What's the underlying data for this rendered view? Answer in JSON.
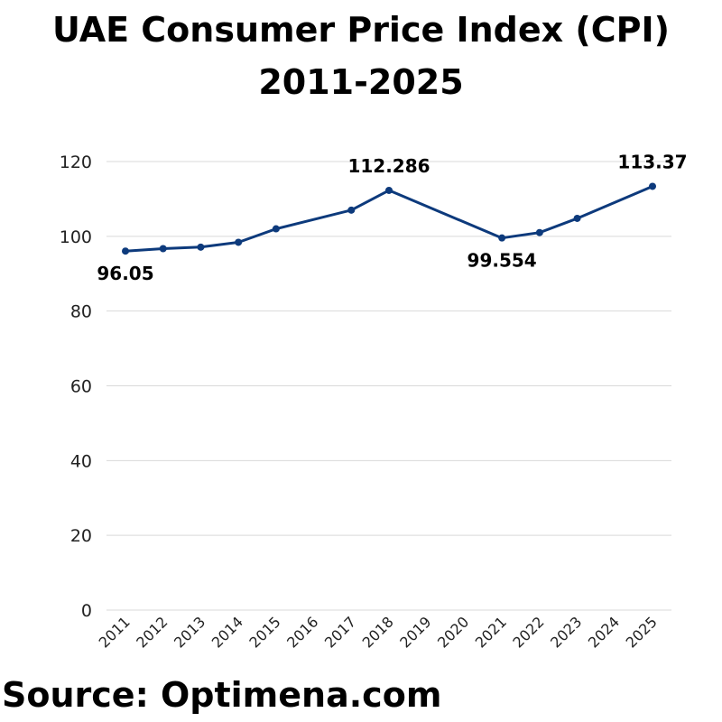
{
  "chart_data": {
    "type": "line",
    "title_line1": "UAE Consumer Price Index (CPI)",
    "title_line2": "2011-2025",
    "x": [
      "2011",
      "2012",
      "2013",
      "2014",
      "2015",
      "2016",
      "2017",
      "2018",
      "2019",
      "2020",
      "2021",
      "2022",
      "2023",
      "2024",
      "2025"
    ],
    "series": [
      {
        "values": [
          96.05,
          96.7,
          97.1,
          98.4,
          102.0,
          null,
          107.0,
          112.286,
          null,
          null,
          99.554,
          101.0,
          104.8,
          null,
          113.37
        ],
        "color": "#0d3a7c"
      }
    ],
    "yticks": [
      "0",
      "20",
      "40",
      "60",
      "80",
      "100",
      "120"
    ],
    "ylim": [
      0,
      120
    ],
    "grid": true,
    "data_labels": [
      {
        "index": 0,
        "text": "96.05",
        "position": "below"
      },
      {
        "index": 7,
        "text": "112.286",
        "position": "above"
      },
      {
        "index": 10,
        "text": "99.554",
        "position": "below"
      },
      {
        "index": 14,
        "text": "113.37",
        "position": "above"
      }
    ]
  },
  "source": "Source: Optimena.com"
}
